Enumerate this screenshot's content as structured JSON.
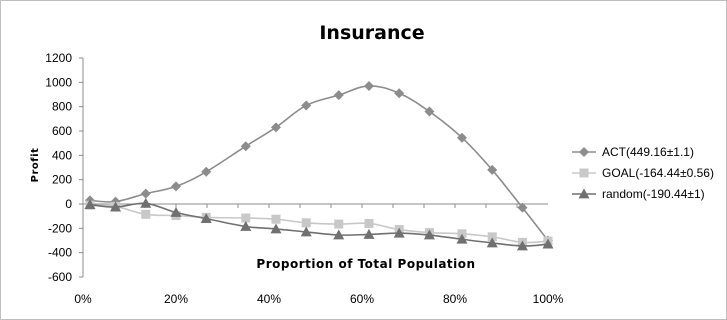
{
  "chart_data": {
    "type": "line",
    "title": "Insurance",
    "xlabel": "Proportion of Total Population",
    "ylabel": "Profit",
    "xlim": [
      0,
      100
    ],
    "ylim": [
      -600,
      1200
    ],
    "x_ticks": [
      "0%",
      "20%",
      "40%",
      "60%",
      "80%",
      "100%"
    ],
    "y_ticks": [
      "1200",
      "1000",
      "800",
      "600",
      "400",
      "200",
      "0",
      "-200",
      "-400",
      "-600"
    ],
    "grid": false,
    "legend_position": "right",
    "series": [
      {
        "name": "ACT(449.16±1.1)",
        "marker": "diamond",
        "color": "#8c8c8c",
        "x": [
          1.5,
          7,
          13.5,
          20,
          26.5,
          35,
          41.5,
          48,
          55,
          61.5,
          68,
          74.5,
          81.5,
          88,
          94.5,
          100
        ],
        "y": [
          30,
          20,
          85,
          145,
          265,
          475,
          630,
          810,
          895,
          970,
          910,
          760,
          545,
          280,
          -30,
          -300
        ]
      },
      {
        "name": "GOAL(-164.44±0.56)",
        "marker": "square",
        "color": "#c8c8c8",
        "x": [
          1.5,
          7,
          13.5,
          20,
          26.5,
          35,
          41.5,
          48,
          55,
          61.5,
          68,
          74.5,
          81.5,
          88,
          94.5,
          100
        ],
        "y": [
          -10,
          -20,
          -85,
          -95,
          -110,
          -115,
          -125,
          -155,
          -165,
          -160,
          -210,
          -235,
          -245,
          -270,
          -315,
          -305
        ]
      },
      {
        "name": "random(-190.44±1)",
        "marker": "triangle",
        "color": "#707070",
        "x": [
          1.5,
          7,
          13.5,
          20,
          26.5,
          35,
          41.5,
          48,
          55,
          61.5,
          68,
          74.5,
          81.5,
          88,
          94.5,
          100
        ],
        "y": [
          -5,
          -25,
          5,
          -70,
          -120,
          -185,
          -205,
          -230,
          -255,
          -250,
          -240,
          -255,
          -290,
          -320,
          -345,
          -330
        ]
      }
    ]
  }
}
